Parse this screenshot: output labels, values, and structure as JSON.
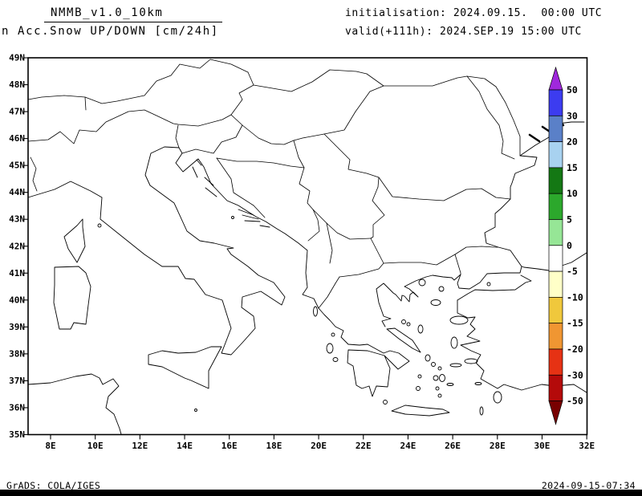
{
  "header": {
    "model": "NMMB_v1.0_10km",
    "field": "n Acc.Snow UP/DOWN [cm/24h]",
    "init": "initialisation: 2024.09.15.  00:00 UTC",
    "valid": "valid(+111h): 2024.SEP.19 15:00 UTC"
  },
  "map": {
    "lat_ticks": [
      "49N",
      "48N",
      "47N",
      "46N",
      "45N",
      "44N",
      "43N",
      "42N",
      "41N",
      "40N",
      "39N",
      "38N",
      "37N",
      "36N",
      "35N"
    ],
    "lon_ticks": [
      "8E",
      "10E",
      "12E",
      "14E",
      "16E",
      "18E",
      "20E",
      "22E",
      "24E",
      "26E",
      "28E",
      "30E",
      "32E"
    ]
  },
  "colorbar": {
    "labels": [
      "50",
      "30",
      "20",
      "15",
      "10",
      "5",
      "0",
      "-5",
      "-10",
      "-15",
      "-20",
      "-30",
      "-50"
    ],
    "segment_colors": [
      "#3c3cf0",
      "#5a80c8",
      "#a8d2f0",
      "#147814",
      "#2ca82c",
      "#96e696",
      "#ffffff",
      "#ffffc8",
      "#f0c83c",
      "#f09632",
      "#e63214",
      "#b40a0a"
    ],
    "arrow_top_color": "#a028dc",
    "arrow_bottom_color": "#780000"
  },
  "footer": {
    "left": "GrADS: COLA/IGES",
    "right": "2024-09-15-07:34"
  }
}
